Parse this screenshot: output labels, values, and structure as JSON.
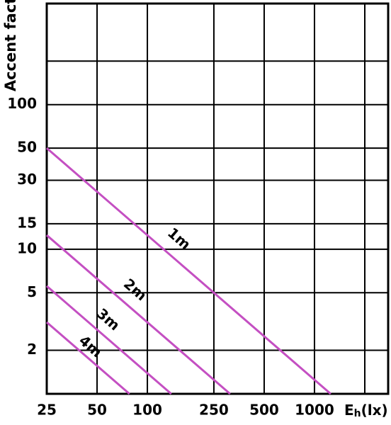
{
  "chart_data": {
    "type": "line",
    "ylabel": "Accent factor",
    "xlabel_symbol": "E",
    "xlabel_subscript": "h",
    "xlabel_unit": "(lx)",
    "log_x": true,
    "log_y": true,
    "grid": true,
    "xlim": [
      25,
      2760
    ],
    "ylim": [
      1,
      500
    ],
    "xticks": [
      25,
      50,
      100,
      250,
      500,
      1000,
      {
        "value": 2000,
        "label": null
      }
    ],
    "yticks": [
      2,
      5,
      10,
      15,
      30,
      50,
      100,
      {
        "value": 200,
        "label": null
      }
    ],
    "series": [
      {
        "name": "1m",
        "color": "#c44fc2",
        "x": [
          25,
          1250
        ],
        "values": [
          50,
          1
        ]
      },
      {
        "name": "2m",
        "color": "#c44fc2",
        "x": [
          25,
          312.5
        ],
        "values": [
          12.5,
          1
        ]
      },
      {
        "name": "3m",
        "color": "#c44fc2",
        "x": [
          25,
          138.9
        ],
        "values": [
          5.56,
          1
        ]
      },
      {
        "name": "4m",
        "color": "#c44fc2",
        "x": [
          25,
          78.1
        ],
        "values": [
          3.125,
          1
        ]
      }
    ]
  }
}
